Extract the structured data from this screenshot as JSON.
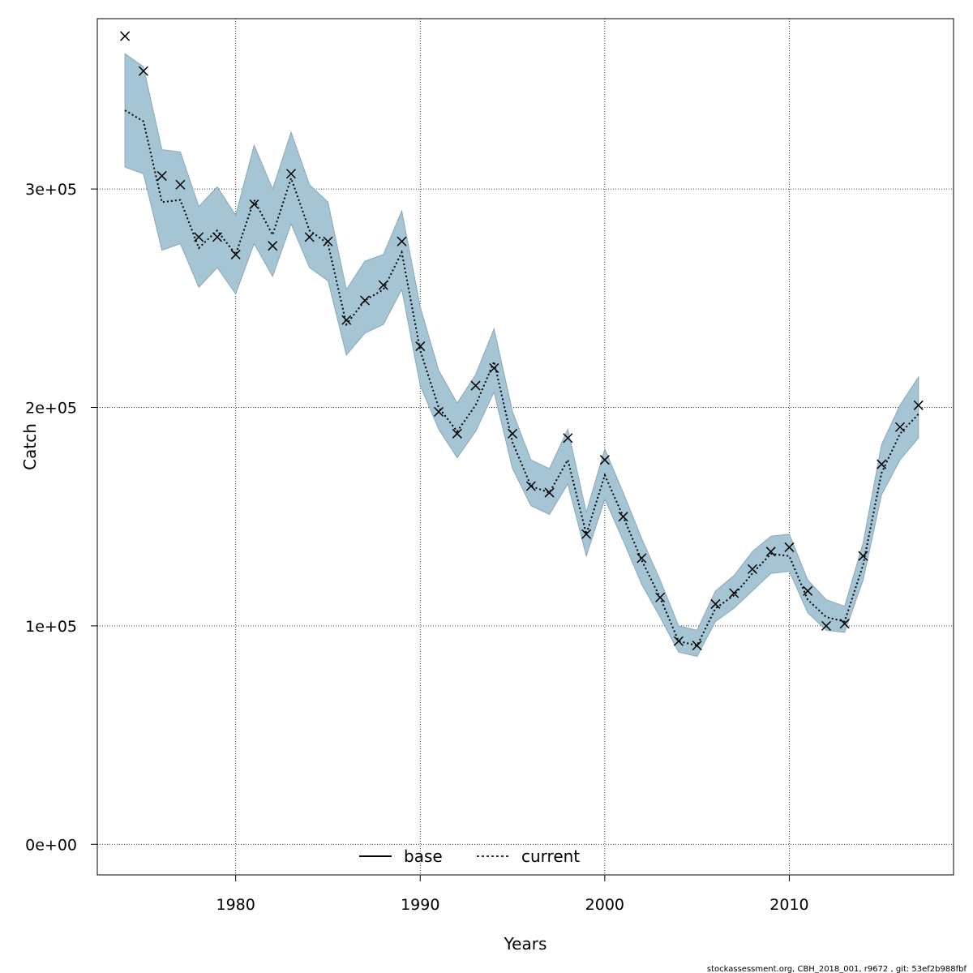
{
  "chart_data": {
    "type": "line",
    "title": "",
    "xlabel": "Years",
    "ylabel": "Catch",
    "xlim": [
      1972.5,
      2018.9
    ],
    "ylim": [
      -14000,
      378000
    ],
    "x_ticks": [
      1980,
      1990,
      2000,
      2010
    ],
    "x_tick_labels": [
      "1980",
      "1990",
      "2000",
      "2010"
    ],
    "y_ticks": [
      0,
      100000,
      200000,
      300000
    ],
    "y_tick_labels": [
      "0e+00",
      "1e+05",
      "2e+05",
      "3e+05"
    ],
    "grid": true,
    "legend_position": "bottom",
    "colors": {
      "band": "#a5c4d4",
      "band_edge": "#8aa8b8",
      "current_line": "#1f3a52",
      "observed_marker": "#000000",
      "grid": "#000000"
    },
    "x": [
      1974,
      1975,
      1976,
      1977,
      1978,
      1979,
      1980,
      1981,
      1982,
      1983,
      1984,
      1985,
      1986,
      1987,
      1988,
      1989,
      1990,
      1991,
      1992,
      1993,
      1994,
      1995,
      1996,
      1997,
      1998,
      1999,
      2000,
      2001,
      2002,
      2003,
      2004,
      2005,
      2006,
      2007,
      2008,
      2009,
      2010,
      2011,
      2012,
      2013,
      2014,
      2015,
      2016,
      2017
    ],
    "series": [
      {
        "name": "current",
        "style": "dotted",
        "values": [
          336000,
          331000,
          294000,
          295000,
          273000,
          281000,
          270000,
          295000,
          279000,
          305000,
          281000,
          275000,
          238000,
          249000,
          254000,
          271000,
          226000,
          200000,
          189000,
          201000,
          221000,
          184000,
          164000,
          161000,
          176000,
          142000,
          169000,
          150000,
          130000,
          113000,
          93000,
          91000,
          108000,
          114000,
          124000,
          133000,
          132000,
          112000,
          104000,
          102000,
          128000,
          170000,
          188000,
          197000
        ]
      }
    ],
    "band": {
      "upper": [
        362000,
        356000,
        318000,
        317000,
        292000,
        301000,
        288000,
        320000,
        300000,
        326000,
        302000,
        294000,
        254000,
        267000,
        270000,
        290000,
        246000,
        217000,
        202000,
        215000,
        236000,
        198000,
        176000,
        172000,
        190000,
        152000,
        181000,
        161000,
        140000,
        121000,
        100000,
        98000,
        116000,
        123000,
        134000,
        141000,
        142000,
        121000,
        112000,
        109000,
        138000,
        183000,
        201000,
        214000
      ],
      "lower": [
        310000,
        307000,
        272000,
        275000,
        255000,
        264000,
        252000,
        275000,
        260000,
        284000,
        264000,
        258000,
        224000,
        234000,
        238000,
        254000,
        210000,
        190000,
        177000,
        189000,
        207000,
        172000,
        155000,
        151000,
        165000,
        132000,
        158000,
        139000,
        119000,
        104000,
        88000,
        86000,
        102000,
        108000,
        116000,
        124000,
        125000,
        106000,
        98000,
        97000,
        121000,
        160000,
        176000,
        186000
      ]
    },
    "observed": [
      370000,
      354000,
      306000,
      302000,
      278000,
      278000,
      270000,
      293000,
      274000,
      307000,
      278000,
      276000,
      240000,
      249000,
      256000,
      276000,
      228000,
      198000,
      188000,
      210000,
      218000,
      188000,
      164000,
      161000,
      186000,
      142000,
      176000,
      150000,
      131000,
      113000,
      93000,
      91000,
      110000,
      115000,
      126000,
      134000,
      136000,
      116000,
      100000,
      101000,
      132000,
      174000,
      191000,
      201000
    ],
    "legend": [
      {
        "label": "base",
        "style": "solid"
      },
      {
        "label": "current",
        "style": "dotted"
      }
    ]
  },
  "footer": "stockassessment.org, CBH_2018_001, r9672 , git: 53ef2b988fbf"
}
